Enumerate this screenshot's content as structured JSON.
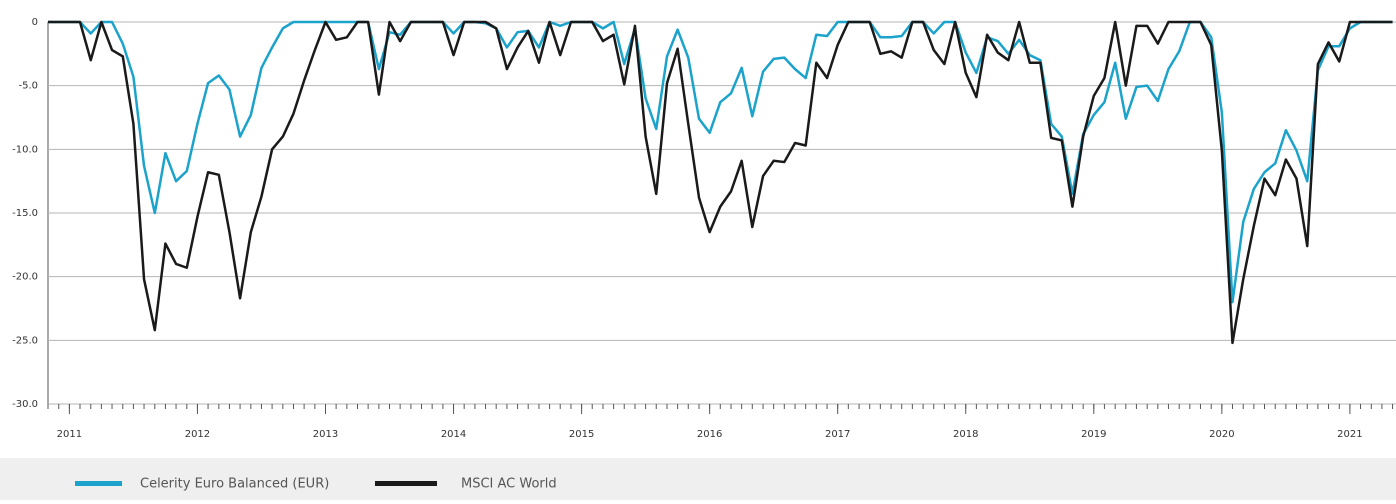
{
  "chart_data": {
    "type": "line",
    "x": [
      2010.833,
      2010.917,
      2011,
      2011.083,
      2011.167,
      2011.25,
      2011.333,
      2011.417,
      2011.5,
      2011.583,
      2011.667,
      2011.75,
      2011.833,
      2011.917,
      2012,
      2012.083,
      2012.167,
      2012.25,
      2012.333,
      2012.417,
      2012.5,
      2012.583,
      2012.667,
      2012.75,
      2012.833,
      2012.917,
      2013,
      2013.083,
      2013.167,
      2013.25,
      2013.333,
      2013.417,
      2013.5,
      2013.583,
      2013.667,
      2013.75,
      2013.833,
      2013.917,
      2014,
      2014.083,
      2014.167,
      2014.25,
      2014.333,
      2014.417,
      2014.5,
      2014.583,
      2014.667,
      2014.75,
      2014.833,
      2014.917,
      2015,
      2015.083,
      2015.167,
      2015.25,
      2015.333,
      2015.417,
      2015.5,
      2015.583,
      2015.667,
      2015.75,
      2015.833,
      2015.917,
      2016,
      2016.083,
      2016.167,
      2016.25,
      2016.333,
      2016.417,
      2016.5,
      2016.583,
      2016.667,
      2016.75,
      2016.833,
      2016.917,
      2017,
      2017.083,
      2017.167,
      2017.25,
      2017.333,
      2017.417,
      2017.5,
      2017.583,
      2017.667,
      2017.75,
      2017.833,
      2017.917,
      2018,
      2018.083,
      2018.167,
      2018.25,
      2018.333,
      2018.417,
      2018.5,
      2018.583,
      2018.667,
      2018.75,
      2018.833,
      2018.917,
      2019,
      2019.083,
      2019.167,
      2019.25,
      2019.333,
      2019.417,
      2019.5,
      2019.583,
      2019.667,
      2019.75,
      2019.833,
      2019.917,
      2020,
      2020.083,
      2020.167,
      2020.25,
      2020.333,
      2020.417,
      2020.5,
      2020.583,
      2020.667,
      2020.75,
      2020.833,
      2020.917,
      2021,
      2021.083,
      2021.167,
      2021.25,
      2021.333
    ],
    "series": [
      {
        "name": "Celerity Euro Balanced (EUR)",
        "color": "#1ba3cc",
        "values": [
          0,
          0,
          0,
          0,
          -0.9,
          0,
          0,
          -1.7,
          -4.3,
          -11.3,
          -15,
          -10.3,
          -12.5,
          -11.7,
          -8,
          -4.8,
          -4.2,
          -5.3,
          -9,
          -7.3,
          -3.6,
          -2,
          -0.5,
          0,
          0,
          0,
          0,
          0,
          0,
          0,
          0,
          -3.7,
          -0.8,
          -1,
          0,
          0,
          0,
          0,
          -0.9,
          0,
          0,
          -0.1,
          -0.5,
          -2,
          -0.8,
          -0.7,
          -2,
          0,
          -0.3,
          0,
          0,
          0,
          -0.5,
          0,
          -3.3,
          -0.5,
          -6,
          -8.4,
          -2.7,
          -0.6,
          -2.8,
          -7.6,
          -8.7,
          -6.3,
          -5.6,
          -3.6,
          -7.4,
          -3.9,
          -2.9,
          -2.8,
          -3.7,
          -4.4,
          -1,
          -1.1,
          0,
          0,
          0,
          0,
          -1.2,
          -1.2,
          -1.1,
          0,
          0,
          -0.9,
          0,
          0,
          -2.4,
          -4,
          -1.2,
          -1.5,
          -2.5,
          -1.4,
          -2.6,
          -3,
          -8,
          -9,
          -13.5,
          -8.8,
          -7.3,
          -6.3,
          -3.2,
          -7.6,
          -5.1,
          -5,
          -6.2,
          -3.7,
          -2.3,
          0,
          0,
          -1.2,
          -7.1,
          -22,
          -15.7,
          -13.1,
          -11.8,
          -11.1,
          -8.5,
          -10.1,
          -12.5,
          -3.8,
          -1.9,
          -1.9,
          -0.5,
          0,
          0,
          0,
          0
        ]
      },
      {
        "name": "MSCI AC World",
        "color": "#1a1a1a",
        "values": [
          0,
          0,
          0,
          0,
          -3,
          0,
          -2.2,
          -2.7,
          -8,
          -20.2,
          -24.2,
          -17.4,
          -19,
          -19.3,
          -15.3,
          -11.8,
          -12,
          -16.5,
          -21.7,
          -16.5,
          -13.7,
          -10,
          -9,
          -7.2,
          -4.6,
          -2.2,
          0,
          -1.4,
          -1.2,
          0,
          0,
          -5.7,
          0,
          -1.5,
          0,
          0,
          0,
          0,
          -2.6,
          0,
          0,
          0,
          -0.5,
          -3.7,
          -2,
          -0.7,
          -3.2,
          0,
          -2.6,
          0,
          0,
          0,
          -1.5,
          -1,
          -4.9,
          -0.3,
          -9,
          -13.5,
          -4.8,
          -2.1,
          -8,
          -13.8,
          -16.5,
          -14.5,
          -13.3,
          -10.9,
          -16.1,
          -12.1,
          -10.9,
          -11,
          -9.5,
          -9.7,
          -3.2,
          -4.4,
          -1.8,
          0,
          0,
          0,
          -2.5,
          -2.3,
          -2.8,
          0,
          0,
          -2.2,
          -3.3,
          0,
          -4,
          -5.9,
          -1,
          -2.4,
          -3,
          0,
          -3.2,
          -3.2,
          -9.1,
          -9.3,
          -14.5,
          -9,
          -5.8,
          -4.4,
          0,
          -5,
          -0.3,
          -0.3,
          -1.7,
          0,
          0,
          0,
          0,
          -1.8,
          -10.1,
          -25.2,
          -20.2,
          -16,
          -12.3,
          -13.6,
          -10.8,
          -12.3,
          -17.6,
          -3.3,
          -1.6,
          -3.1,
          0,
          0,
          0,
          0,
          0
        ]
      }
    ],
    "xlim": [
      2010.833,
      2021.36
    ],
    "xticks": [
      2011,
      2012,
      2013,
      2014,
      2015,
      2016,
      2017,
      2018,
      2019,
      2020,
      2021
    ],
    "ylim": [
      -30,
      0
    ],
    "yticks": [
      0,
      {
        "value": -5,
        "label": "-5.0"
      },
      {
        "value": -10,
        "label": "-10.0"
      },
      {
        "value": -15,
        "label": "-15.0"
      },
      {
        "value": -20,
        "label": "-20.0"
      },
      {
        "value": -25,
        "label": "-25.0"
      },
      {
        "value": -30,
        "label": "-30.0"
      }
    ],
    "grid": true
  }
}
